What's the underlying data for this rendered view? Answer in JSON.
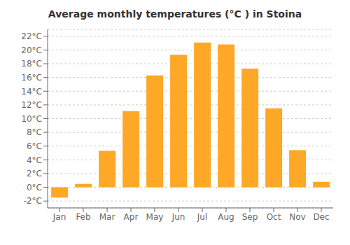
{
  "chart_data": {
    "type": "bar",
    "title": "Average monthly temperatures (°C ) in Stoina",
    "categories": [
      "Jan",
      "Feb",
      "Mar",
      "Apr",
      "May",
      "Jun",
      "Jul",
      "Aug",
      "Sep",
      "Oct",
      "Nov",
      "Dec"
    ],
    "values": [
      -1.5,
      0.5,
      5.3,
      11.1,
      16.3,
      19.3,
      21.1,
      20.8,
      17.3,
      11.5,
      5.4,
      0.8
    ],
    "color": "#FFA726",
    "ylim": [
      -3,
      23
    ],
    "yticks": [
      {
        "value": -2,
        "label": "-2°C"
      },
      {
        "value": 0,
        "label": "0°C"
      },
      {
        "value": 2,
        "label": "2°C"
      },
      {
        "value": 4,
        "label": "4°C"
      },
      {
        "value": 6,
        "label": "6°C"
      },
      {
        "value": 8,
        "label": "8°C"
      },
      {
        "value": 10,
        "label": "10°C"
      },
      {
        "value": 12,
        "label": "12°C"
      },
      {
        "value": 14,
        "label": "14°C"
      },
      {
        "value": 16,
        "label": "16°C"
      },
      {
        "value": 18,
        "label": "18°C"
      },
      {
        "value": 20,
        "label": "20°C"
      },
      {
        "value": 22,
        "label": "22°C"
      }
    ],
    "grid": true
  }
}
